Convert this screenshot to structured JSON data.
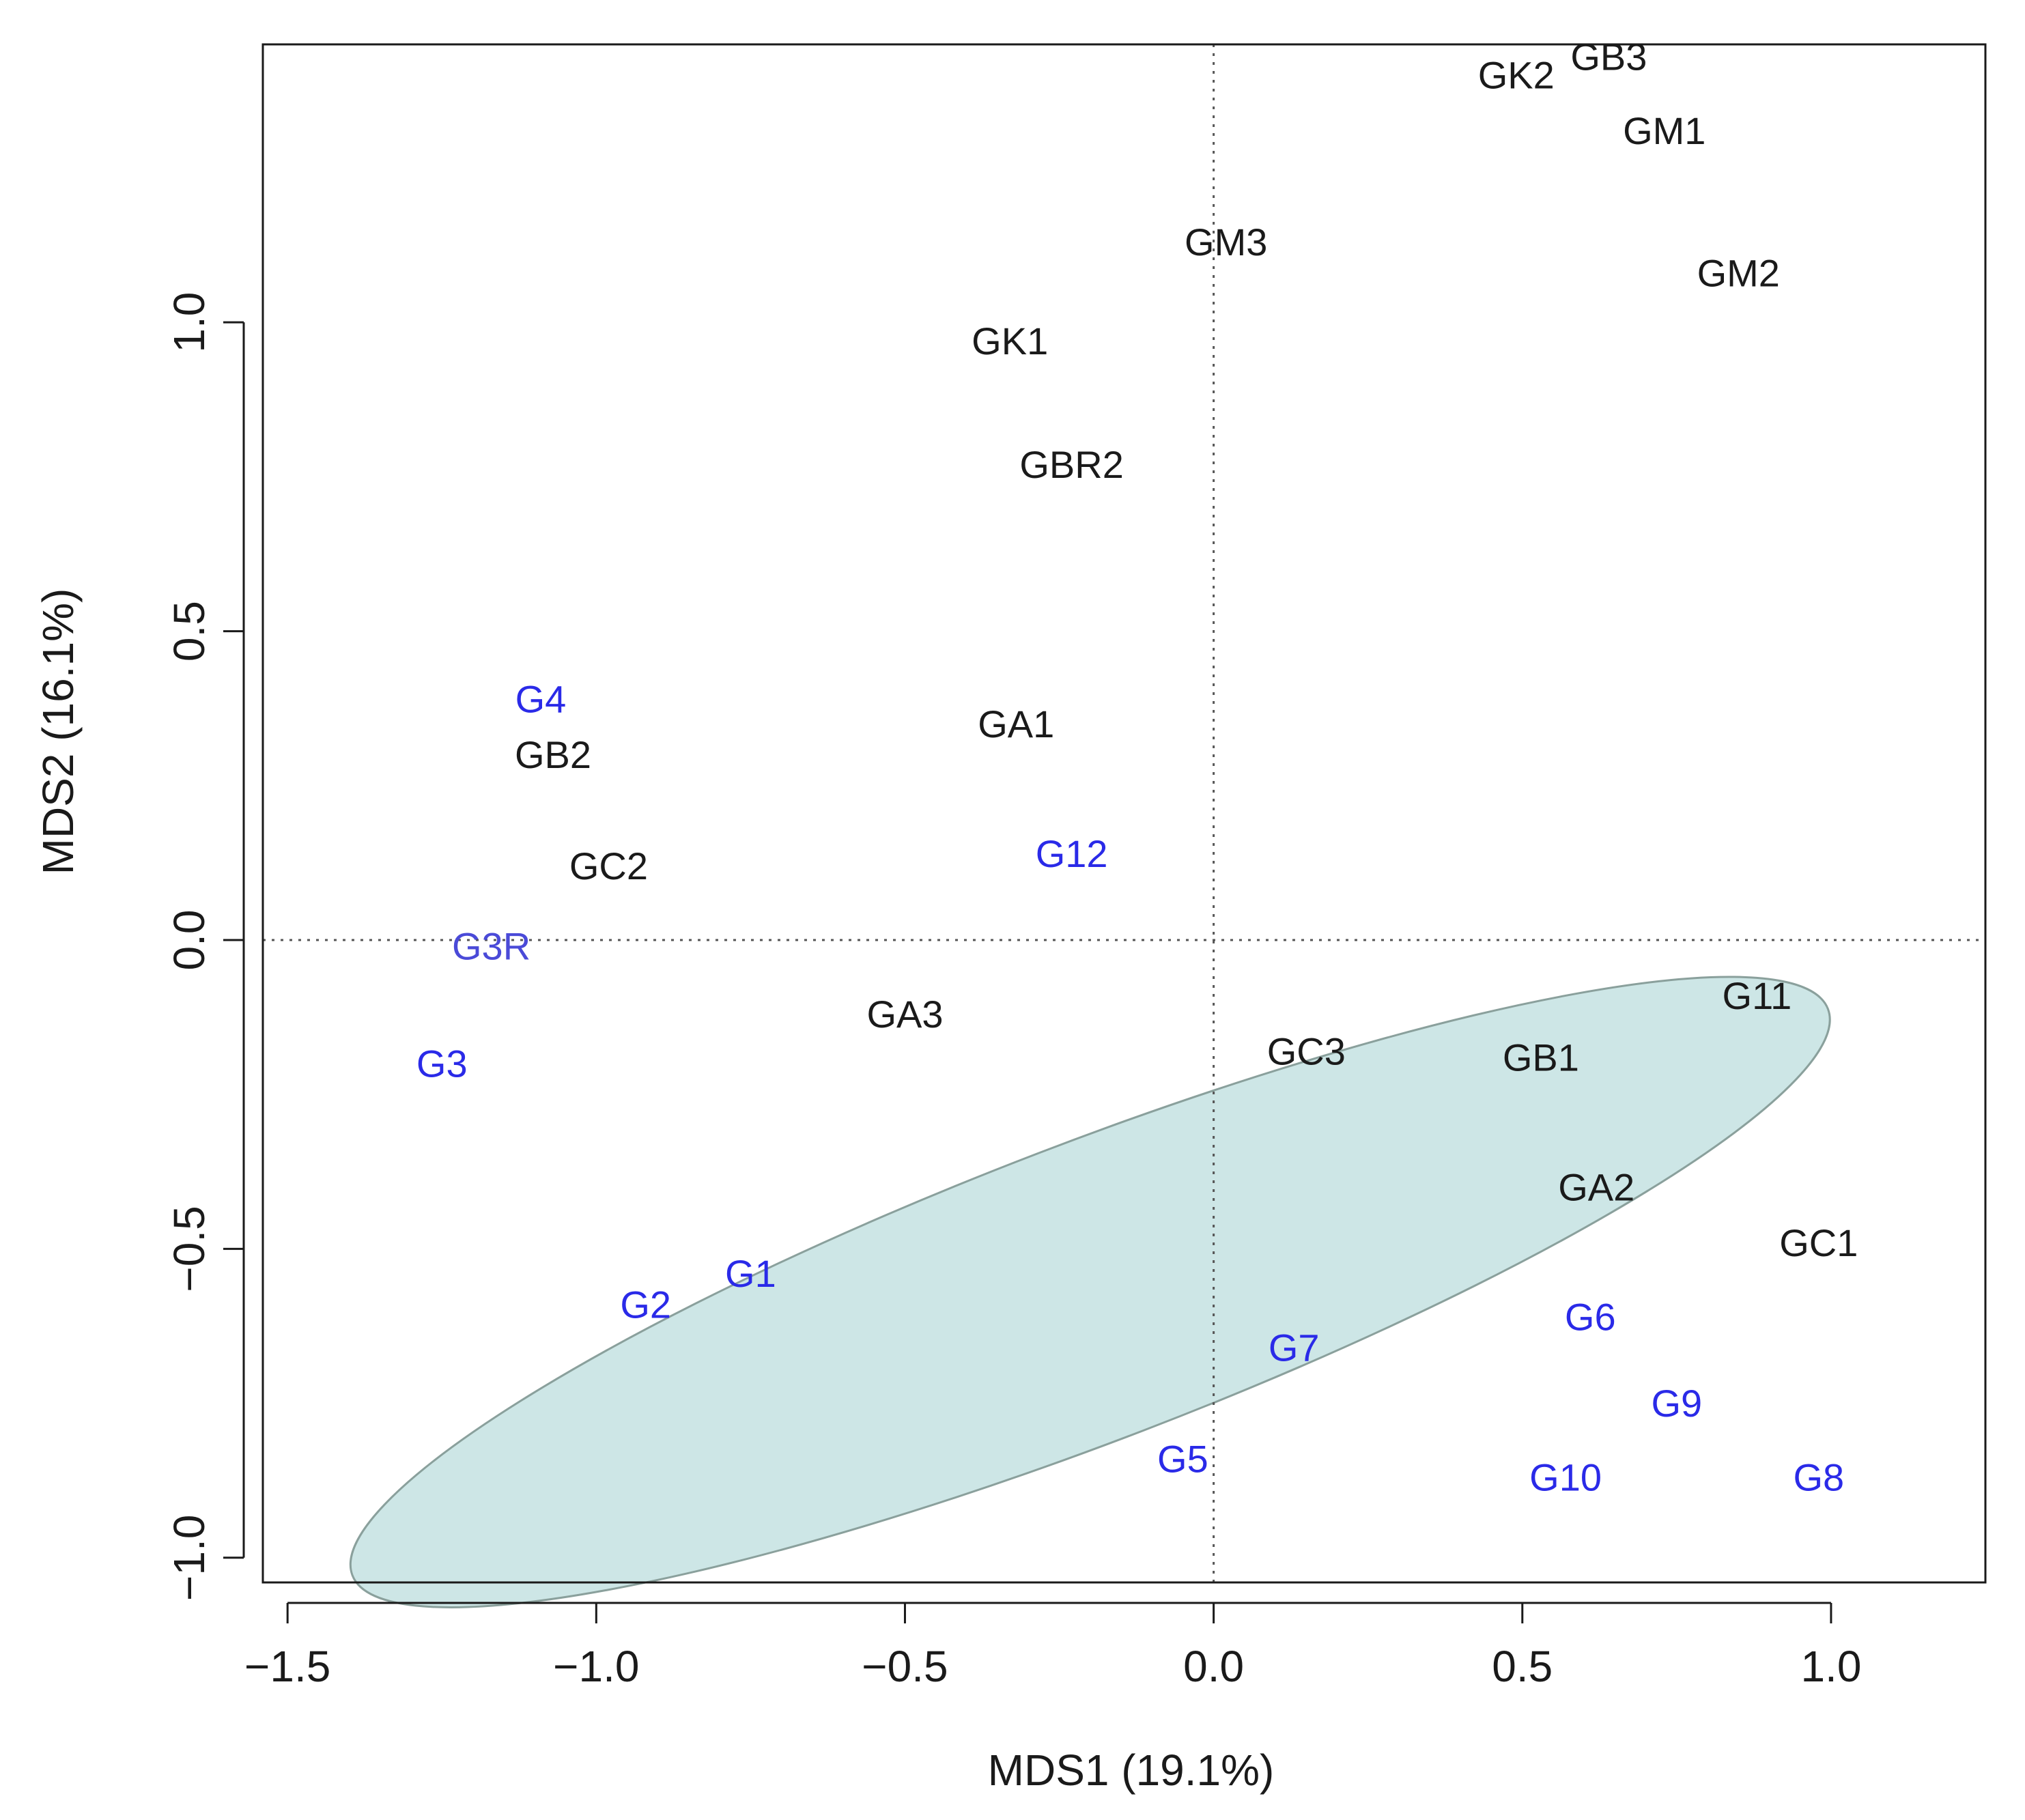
{
  "chart_data": {
    "type": "scatter",
    "title": "",
    "xlabel": "MDS1 (19.1%)",
    "ylabel": "MDS2 (16.1%)",
    "xlim": [
      -1.54,
      1.25
    ],
    "ylim": [
      -1.04,
      1.45
    ],
    "xticks": [
      -1.5,
      -1.0,
      -0.5,
      0.0,
      0.5,
      1.0
    ],
    "xtick_labels": [
      "−1.5",
      "−1.0",
      "−0.5",
      "0.0",
      "0.5",
      "1.0"
    ],
    "yticks": [
      -1.0,
      -0.5,
      0.0,
      0.5,
      1.0
    ],
    "ytick_labels": [
      "−1.0",
      "−0.5",
      "0.0",
      "0.5",
      "1.0"
    ],
    "reference_lines": {
      "x": 0.0,
      "y": 0.0,
      "style": "dotted"
    },
    "colors": {
      "group_g": "#2a2ae8",
      "group_other": "#1a1a1a",
      "g3r": "#4a4ad8",
      "ellipse_fill": "#cde6e6",
      "ellipse_stroke": "#8aa09c"
    },
    "ellipse": {
      "cx": -0.2,
      "cy": -0.57,
      "rx": 1.28,
      "ry": 0.24,
      "angle_deg": -21,
      "description": "highlight of G samples"
    },
    "points": [
      {
        "label": "GB3",
        "x": 0.64,
        "y": 1.43,
        "group": "other"
      },
      {
        "label": "GK2",
        "x": 0.49,
        "y": 1.4,
        "group": "other"
      },
      {
        "label": "GM1",
        "x": 0.73,
        "y": 1.31,
        "group": "other"
      },
      {
        "label": "GM3",
        "x": 0.02,
        "y": 1.13,
        "group": "other"
      },
      {
        "label": "GM2",
        "x": 0.85,
        "y": 1.08,
        "group": "other"
      },
      {
        "label": "GK1",
        "x": -0.33,
        "y": 0.97,
        "group": "other"
      },
      {
        "label": "GBR2",
        "x": -0.23,
        "y": 0.77,
        "group": "other"
      },
      {
        "label": "G4",
        "x": -1.09,
        "y": 0.39,
        "group": "G"
      },
      {
        "label": "GA1",
        "x": -0.32,
        "y": 0.35,
        "group": "other"
      },
      {
        "label": "GB2",
        "x": -1.07,
        "y": 0.3,
        "group": "other"
      },
      {
        "label": "G12",
        "x": -0.23,
        "y": 0.14,
        "group": "G"
      },
      {
        "label": "GC2",
        "x": -0.98,
        "y": 0.12,
        "group": "other"
      },
      {
        "label": "G3R",
        "x": -1.17,
        "y": -0.01,
        "group": "G3R"
      },
      {
        "label": "G11",
        "x": 0.88,
        "y": -0.09,
        "group": "other"
      },
      {
        "label": "GA3",
        "x": -0.5,
        "y": -0.12,
        "group": "other"
      },
      {
        "label": "GC3",
        "x": 0.15,
        "y": -0.18,
        "group": "other"
      },
      {
        "label": "GB1",
        "x": 0.53,
        "y": -0.19,
        "group": "other"
      },
      {
        "label": "G3",
        "x": -1.25,
        "y": -0.2,
        "group": "G"
      },
      {
        "label": "GA2",
        "x": 0.62,
        "y": -0.4,
        "group": "other"
      },
      {
        "label": "GC1",
        "x": 0.98,
        "y": -0.49,
        "group": "other"
      },
      {
        "label": "G1",
        "x": -0.75,
        "y": -0.54,
        "group": "G"
      },
      {
        "label": "G2",
        "x": -0.92,
        "y": -0.59,
        "group": "G"
      },
      {
        "label": "G6",
        "x": 0.61,
        "y": -0.61,
        "group": "G"
      },
      {
        "label": "G7",
        "x": 0.13,
        "y": -0.66,
        "group": "G"
      },
      {
        "label": "G9",
        "x": 0.75,
        "y": -0.75,
        "group": "G"
      },
      {
        "label": "G5",
        "x": -0.05,
        "y": -0.84,
        "group": "G"
      },
      {
        "label": "G10",
        "x": 0.57,
        "y": -0.87,
        "group": "G"
      },
      {
        "label": "G8",
        "x": 0.98,
        "y": -0.87,
        "group": "G"
      }
    ]
  }
}
